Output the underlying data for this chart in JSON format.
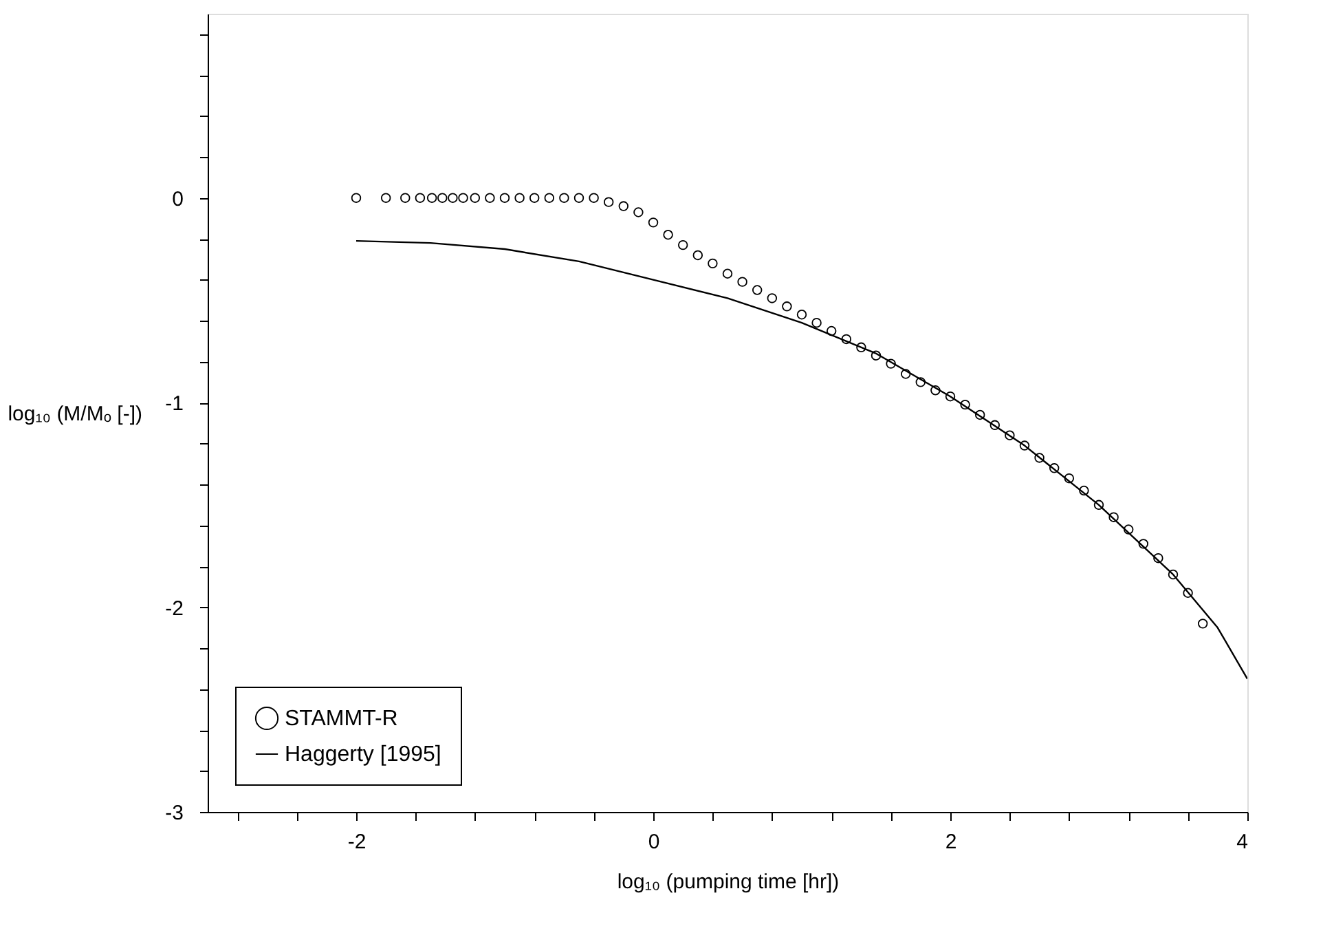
{
  "chart_data": {
    "type": "scatter",
    "xlabel": "log₁₀ (pumping time [hr])",
    "ylabel": "log₁₀ (M/Mₒ [-])",
    "xlim": [
      -3,
      4
    ],
    "ylim": [
      -3,
      0.9
    ],
    "xticks": [
      {
        "value": -2.8,
        "label": null
      },
      {
        "value": -2.4,
        "label": null
      },
      -2,
      {
        "value": -1.6,
        "label": null
      },
      {
        "value": -1.2,
        "label": null
      },
      {
        "value": -0.8,
        "label": null
      },
      {
        "value": -0.4,
        "label": null
      },
      0,
      {
        "value": 0.4,
        "label": null
      },
      {
        "value": 0.8,
        "label": null
      },
      {
        "value": 1.2,
        "label": null
      },
      {
        "value": 1.6,
        "label": null
      },
      2,
      {
        "value": 2.4,
        "label": null
      },
      {
        "value": 2.8,
        "label": null
      },
      {
        "value": 3.2,
        "label": null
      },
      {
        "value": 3.6,
        "label": null
      },
      4
    ],
    "yticks": [
      -3,
      {
        "value": -2.8,
        "label": null
      },
      {
        "value": -2.6,
        "label": null
      },
      {
        "value": -2.4,
        "label": null
      },
      {
        "value": -2.2,
        "label": null
      },
      -2,
      {
        "value": -1.8,
        "label": null
      },
      {
        "value": -1.6,
        "label": null
      },
      {
        "value": -1.4,
        "label": null
      },
      {
        "value": -1.2,
        "label": null
      },
      -1,
      {
        "value": -0.8,
        "label": null
      },
      {
        "value": -0.6,
        "label": null
      },
      {
        "value": -0.4,
        "label": null
      },
      {
        "value": -0.2,
        "label": null
      },
      0,
      {
        "value": 0.2,
        "label": null
      },
      {
        "value": 0.4,
        "label": null
      },
      {
        "value": 0.6,
        "label": null
      },
      {
        "value": 0.8,
        "label": null
      }
    ],
    "grid": false,
    "legend": "bottom left",
    "series": [
      {
        "name": "STAMMT-R",
        "marker": "circle",
        "color": "#000000",
        "x": [
          -2,
          -1.8,
          -1.67,
          -1.57,
          -1.49,
          -1.42,
          -1.35,
          -1.28,
          -1.2,
          -1.1,
          -1.0,
          -0.9,
          -0.8,
          -0.7,
          -0.6,
          -0.5,
          -0.4,
          -0.3,
          -0.2,
          -0.1,
          0,
          0.1,
          0.2,
          0.3,
          0.4,
          0.5,
          0.6,
          0.7,
          0.8,
          0.9,
          1.0,
          1.1,
          1.2,
          1.3,
          1.4,
          1.5,
          1.6,
          1.7,
          1.8,
          1.9,
          2.0,
          2.1,
          2.2,
          2.3,
          2.4,
          2.5,
          2.6,
          2.7,
          2.8,
          2.9,
          3.0,
          3.1,
          3.2,
          3.3,
          3.4,
          3.5,
          3.6,
          3.7
        ],
        "values": [
          0,
          0,
          0,
          0,
          0,
          0,
          0,
          0,
          0,
          0,
          0,
          0,
          0,
          0,
          0,
          0,
          0,
          -0.02,
          -0.04,
          -0.07,
          -0.12,
          -0.18,
          -0.23,
          -0.28,
          -0.32,
          -0.37,
          -0.41,
          -0.45,
          -0.49,
          -0.53,
          -0.57,
          -0.61,
          -0.65,
          -0.69,
          -0.73,
          -0.77,
          -0.81,
          -0.86,
          -0.9,
          -0.94,
          -0.97,
          -1.01,
          -1.06,
          -1.11,
          -1.16,
          -1.21,
          -1.27,
          -1.32,
          -1.37,
          -1.43,
          -1.5,
          -1.56,
          -1.62,
          -1.69,
          -1.76,
          -1.84,
          -1.93,
          -2.08
        ]
      },
      {
        "name": "Haggerty [1995]",
        "type": "line",
        "line_style": "solid",
        "marker": "none",
        "color": "#000000",
        "x": [
          -2,
          -1.5,
          -1,
          -0.5,
          0,
          0.5,
          1.0,
          1.5,
          2,
          2.5,
          3,
          3.5,
          3.8,
          4
        ],
        "values": [
          -0.21,
          -0.22,
          -0.25,
          -0.31,
          -0.4,
          -0.49,
          -0.61,
          -0.76,
          -0.97,
          -1.21,
          -1.5,
          -1.84,
          -2.1,
          -2.35
        ]
      }
    ]
  }
}
